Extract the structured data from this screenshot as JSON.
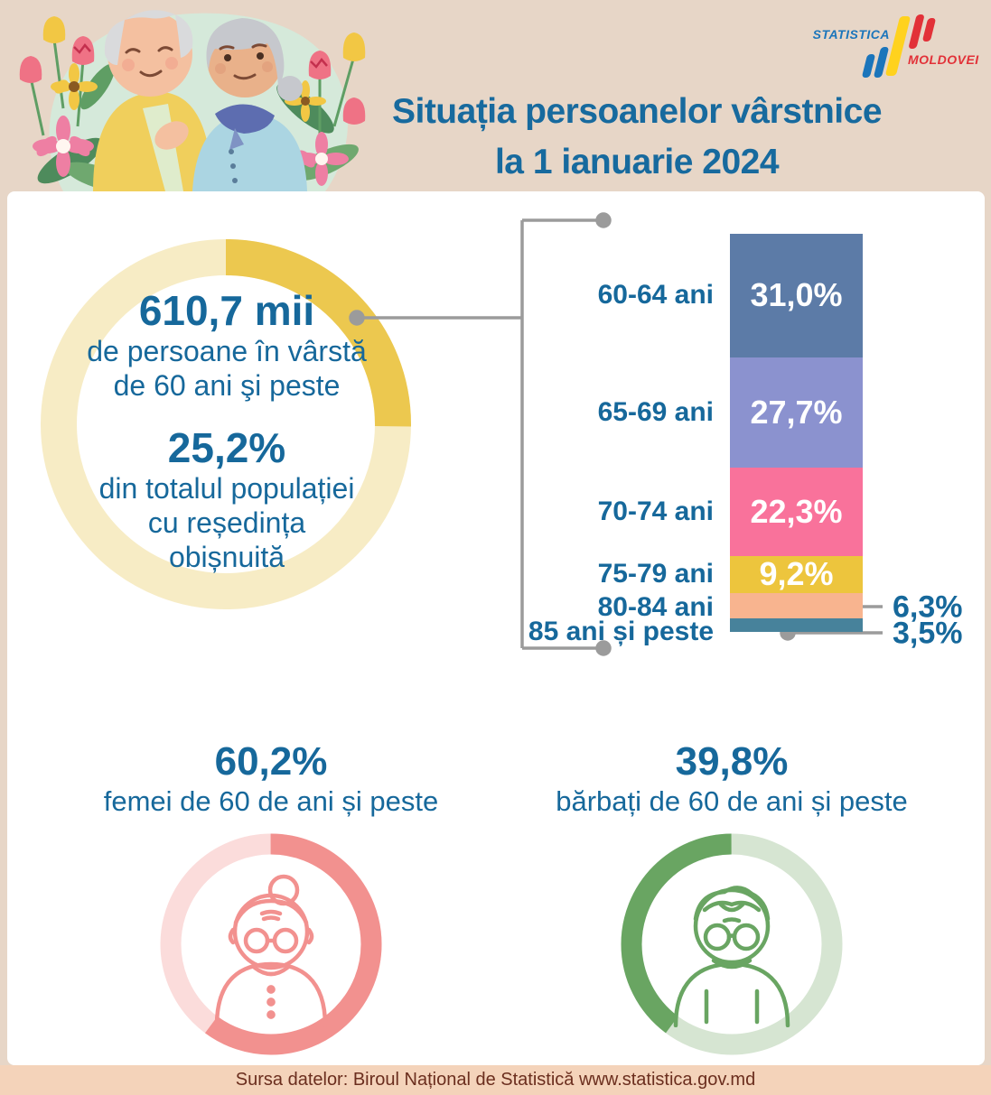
{
  "header": {
    "title_line1": "Situația persoanelor vârstnice",
    "title_line2": "la 1 ianuarie 2024",
    "logo": {
      "word1": "STATISTICA",
      "word2": "MOLDOVEI"
    }
  },
  "colors": {
    "background": "#e7d6c7",
    "panel": "#ffffff",
    "text_blue": "#16689b",
    "connector_gray": "#9b9b9b",
    "footer_bg": "#f4d3ba",
    "footer_text": "#6b2e1e",
    "logo_blue": "#1b75bb",
    "logo_yellow": "#ffd21e",
    "logo_red": "#e23138"
  },
  "summary": {
    "value": "610,7 mii",
    "value_desc1": "de persoane în vârstă",
    "value_desc2": "de 60 ani şi peste",
    "pct": "25,2%",
    "pct_desc1": "din totalul populației",
    "pct_desc2": "cu reședința",
    "pct_desc3": "obișnuită"
  },
  "gender": {
    "female_pct": "60,2%",
    "female_desc": "femei de 60 de ani și peste",
    "male_pct": "39,8%",
    "male_desc": "bărbați de 60 de ani și peste"
  },
  "footer": {
    "text": "Sursa datelor: Biroul Național de Statistică www.statistica.gov.md"
  },
  "chart_data": [
    {
      "id": "total_donut",
      "type": "donut",
      "title": "610,7 mii de persoane în vârstă de 60 ani şi peste",
      "value": 25.2,
      "label": "25,2% din totalul populației cu reședința obișnuită",
      "color": "#ecc84f",
      "track_color": "#f7ecc5",
      "direction": "clockwise",
      "start": "top"
    },
    {
      "id": "age_bar",
      "type": "bar",
      "stacked": true,
      "title": "Structura populației de 60 ani și peste, pe grupe de vârstă",
      "categories": [
        "60-64 ani",
        "65-69 ani",
        "70-74 ani",
        "75-79 ani",
        "80-84 ani",
        "85 ani și peste"
      ],
      "values": [
        31.0,
        27.7,
        22.3,
        9.2,
        6.3,
        3.5
      ],
      "value_labels": [
        "31,0%",
        "27,7%",
        "22,3%",
        "9,2%",
        "6,3%",
        "3,5%"
      ],
      "colors": [
        "#5c7ba7",
        "#8b92cf",
        "#f9729b",
        "#edc53d",
        "#f8b48f",
        "#47829b"
      ],
      "inside_label_count": 4,
      "ylim": [
        0,
        100
      ],
      "unit": "%"
    },
    {
      "id": "female_donut",
      "type": "donut",
      "title": "femei de 60 de ani și peste",
      "value": 60.2,
      "label": "60,2%",
      "color": "#f2918f",
      "track_color": "#fbdcdb",
      "direction": "clockwise",
      "start": "top"
    },
    {
      "id": "male_donut",
      "type": "donut",
      "title": "bărbați de 60 de ani și peste",
      "value": 39.8,
      "label": "39,8%",
      "color": "#69a562",
      "track_color": "#d6e5d2",
      "direction": "counterclockwise",
      "start": "top"
    }
  ]
}
